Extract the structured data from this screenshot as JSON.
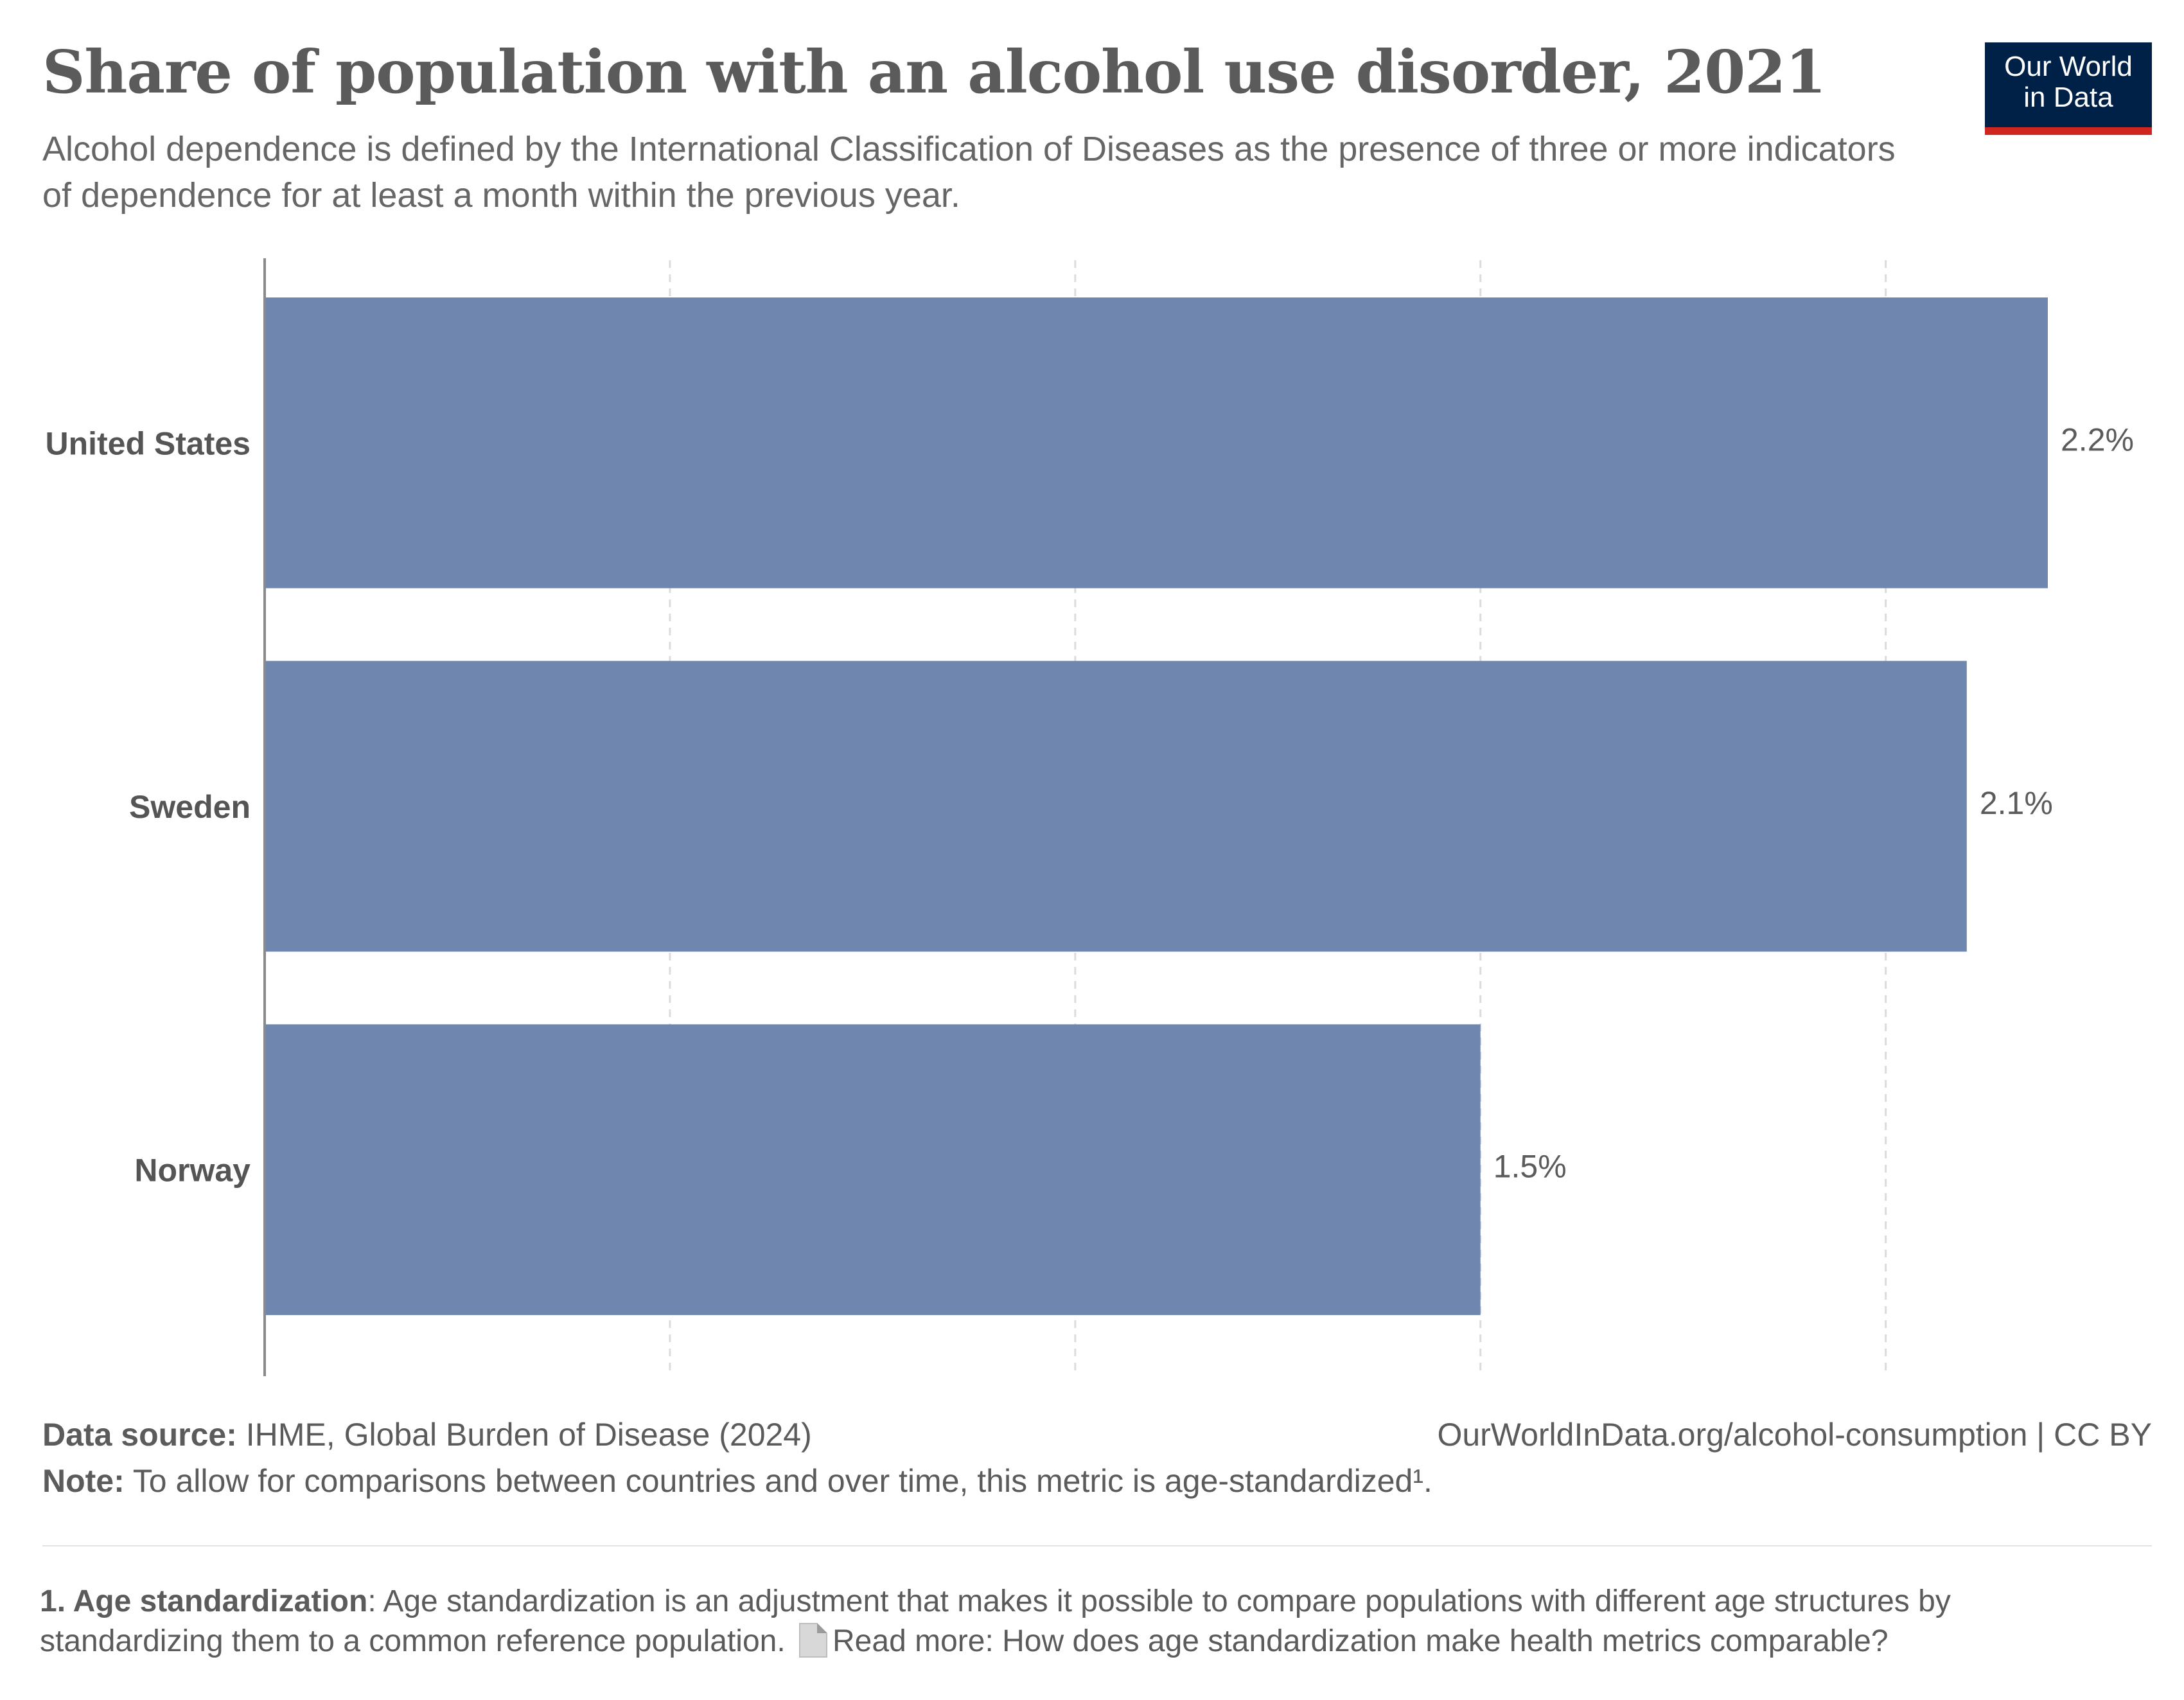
{
  "header": {
    "title": "Share of population with an alcohol use disorder, 2021",
    "subtitle": "Alcohol dependence is defined by the International Classification of Diseases as the presence of three or more indicators of dependence for at least a month within the previous year."
  },
  "logo": {
    "line1": "Our World",
    "line2": "in Data"
  },
  "chart_data": {
    "type": "bar",
    "orientation": "horizontal",
    "categories": [
      "United States",
      "Sweden",
      "Norway"
    ],
    "values": [
      2.2,
      2.1,
      1.5
    ],
    "value_labels": [
      "2.2%",
      "2.1%",
      "1.5%"
    ],
    "xlim": [
      0,
      2.2
    ],
    "gridlines": [
      0.5,
      1.0,
      1.5,
      2.0
    ],
    "grid": true,
    "bar_color": "#6f87ae"
  },
  "footer": {
    "source_label": "Data source:",
    "source_text": " IHME, Global Burden of Disease (2024)",
    "url": "OurWorldInData.org/alcohol-consumption  | CC BY",
    "note_label": "Note:",
    "note_text": " To allow for comparisons between countries and over time, this metric is  age-standardized¹."
  },
  "footnote": {
    "label": "1. Age standardization",
    "text": ": Age standardization is an adjustment that makes it possible to compare populations with different age structures by standardizing them to a common reference population. ",
    "icon": "document-icon",
    "link_text": "Read more: How does age standardization make health metrics comparable?"
  }
}
